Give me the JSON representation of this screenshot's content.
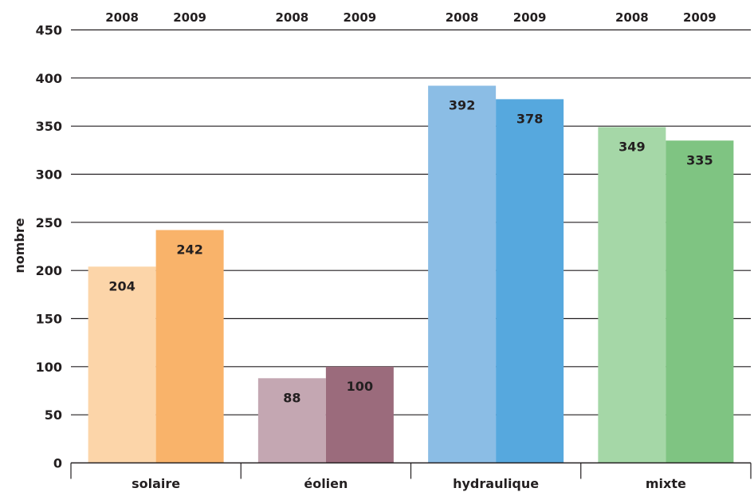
{
  "chart_data": {
    "type": "bar",
    "categories": [
      "solaire",
      "éolien",
      "hydraulique",
      "mixte"
    ],
    "series": [
      {
        "name": "2008",
        "values": [
          204,
          88,
          392,
          349
        ],
        "colors": [
          "#fcd5a9",
          "#c4a7b2",
          "#8bbde5",
          "#a5d7a7"
        ]
      },
      {
        "name": "2009",
        "values": [
          242,
          100,
          378,
          335
        ],
        "colors": [
          "#f9b36a",
          "#9b6b7c",
          "#56a8de",
          "#7fc482"
        ]
      }
    ],
    "title": "",
    "xlabel": "",
    "ylabel": "nombre",
    "ylim": [
      0,
      450
    ],
    "yticks": [
      0,
      50,
      100,
      150,
      200,
      250,
      300,
      350,
      400,
      450
    ],
    "grid": true,
    "data_labels": true,
    "legend": "top"
  }
}
